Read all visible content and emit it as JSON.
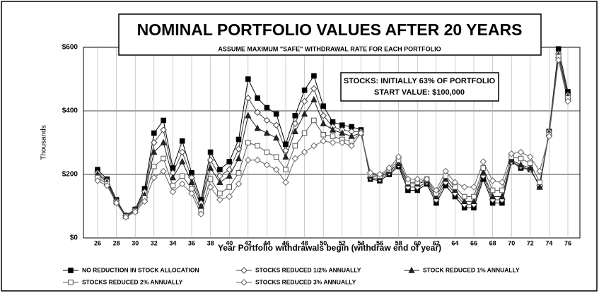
{
  "chart_data": {
    "type": "line",
    "title": "NOMINAL PORTFOLIO VALUES AFTER 20 YEARS",
    "subtitle": "ASSUME MAXIMUM \"SAFE\" WITHDRAWAL RATE FOR EACH PORTFOLIO",
    "annotation": [
      "STOCKS: INITIALLY 63% OF PORTFOLIO",
      "START VALUE: $100,000"
    ],
    "x_label": "Year Portfolio withdrawals begin (withdraw end of year)",
    "y_label": "Thousands",
    "categories": [
      "26",
      null,
      "28",
      null,
      "30",
      null,
      "32",
      null,
      "34",
      null,
      "36",
      null,
      "38",
      null,
      "40",
      null,
      "42",
      null,
      "44",
      null,
      "46",
      null,
      "48",
      null,
      "50",
      null,
      "52",
      null,
      "54",
      null,
      "56",
      null,
      "58",
      null,
      "60",
      null,
      "62",
      null,
      "64",
      null,
      "66",
      null,
      "68",
      null,
      "70",
      null,
      "72",
      null,
      "74",
      null,
      "76"
    ],
    "ylim": [
      0,
      600
    ],
    "yticks": [
      {
        "value": 0,
        "label": "$0"
      },
      {
        "value": 200,
        "label": "$200"
      },
      {
        "value": 400,
        "label": "$400"
      },
      {
        "value": 600,
        "label": "$600"
      }
    ],
    "grid": true,
    "series": [
      {
        "name": "NO REDUCTION IN STOCK ALLOCATION",
        "color": "#000000",
        "marker": "square-filled",
        "values": [
          215,
          185,
          120,
          70,
          90,
          155,
          330,
          370,
          220,
          305,
          205,
          120,
          270,
          215,
          240,
          310,
          500,
          440,
          410,
          390,
          295,
          385,
          465,
          510,
          415,
          365,
          355,
          350,
          340,
          185,
          180,
          200,
          225,
          150,
          150,
          170,
          110,
          165,
          130,
          95,
          95,
          185,
          110,
          110,
          240,
          220,
          215,
          165,
          335,
          595,
          460
        ]
      },
      {
        "name": "STOCKS REDUCED 1/2% ANNUALLY",
        "color": "#444444",
        "marker": "diamond-open",
        "values": [
          205,
          180,
          118,
          70,
          90,
          145,
          300,
          340,
          205,
          270,
          190,
          110,
          245,
          195,
          215,
          280,
          440,
          395,
          370,
          355,
          275,
          360,
          430,
          470,
          385,
          350,
          340,
          335,
          335,
          190,
          185,
          205,
          230,
          160,
          160,
          175,
          120,
          175,
          140,
          105,
          105,
          195,
          120,
          120,
          240,
          225,
          215,
          165,
          335,
          580,
          450
        ]
      },
      {
        "name": "STOCK REDUCED 1% ANNUALLY",
        "color": "#222222",
        "marker": "triangle-filled",
        "values": [
          200,
          175,
          115,
          70,
          88,
          135,
          270,
          300,
          190,
          240,
          175,
          100,
          220,
          175,
          195,
          250,
          385,
          345,
          330,
          315,
          255,
          335,
          390,
          435,
          360,
          340,
          330,
          320,
          330,
          195,
          190,
          210,
          235,
          170,
          170,
          180,
          130,
          185,
          150,
          115,
          115,
          205,
          130,
          130,
          245,
          230,
          220,
          160,
          330,
          575,
          445
        ]
      },
      {
        "name": "STOCKS REDUCED 2% ANNUALLY",
        "color": "#555555",
        "marker": "square-open",
        "values": [
          190,
          170,
          112,
          68,
          85,
          125,
          225,
          250,
          165,
          195,
          155,
          85,
          185,
          140,
          160,
          205,
          300,
          290,
          270,
          255,
          215,
          290,
          330,
          370,
          325,
          320,
          310,
          305,
          330,
          200,
          195,
          215,
          245,
          175,
          175,
          185,
          140,
          195,
          160,
          130,
          130,
          220,
          150,
          150,
          255,
          250,
          235,
          175,
          325,
          570,
          440
        ]
      },
      {
        "name": "STOCKS REDUCED 3% ANNUALLY",
        "color": "#666666",
        "marker": "diamond-open",
        "values": [
          180,
          165,
          110,
          65,
          82,
          115,
          190,
          210,
          145,
          170,
          140,
          75,
          160,
          120,
          130,
          170,
          245,
          245,
          230,
          215,
          175,
          250,
          270,
          290,
          305,
          300,
          300,
          290,
          330,
          205,
          200,
          220,
          255,
          185,
          185,
          185,
          150,
          210,
          175,
          160,
          160,
          240,
          180,
          175,
          265,
          270,
          255,
          210,
          320,
          560,
          430
        ]
      }
    ]
  }
}
